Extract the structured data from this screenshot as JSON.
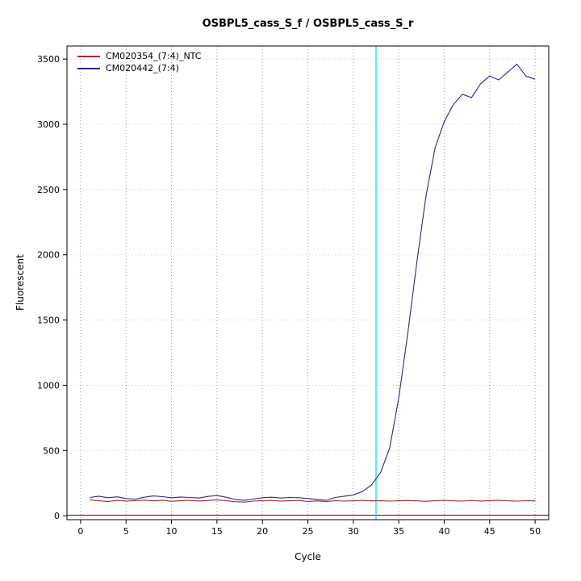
{
  "chart_data": {
    "type": "line",
    "title": "OSBPL5_cass_S_f / OSBPL5_cass_S_r",
    "xlabel": "Cycle",
    "ylabel": "Fluorescent",
    "xlim": [
      0,
      50
    ],
    "ylim": [
      0,
      3500
    ],
    "xticks": [
      0,
      5,
      10,
      15,
      20,
      25,
      30,
      35,
      40,
      45,
      50
    ],
    "yticks": [
      0,
      500,
      1000,
      1500,
      2000,
      2500,
      3000,
      3500
    ],
    "grid": "dotted",
    "legend_position": "top-left",
    "ct_line": {
      "x": 32.5,
      "color": "#00e5ee"
    },
    "baseline_line": {
      "y": 5,
      "color": "#8b0000"
    },
    "x": [
      1,
      2,
      3,
      4,
      5,
      6,
      7,
      8,
      9,
      10,
      11,
      12,
      13,
      14,
      15,
      16,
      17,
      18,
      19,
      20,
      21,
      22,
      23,
      24,
      25,
      26,
      27,
      28,
      29,
      30,
      31,
      32,
      33,
      34,
      35,
      36,
      37,
      38,
      39,
      40,
      41,
      42,
      43,
      44,
      45,
      46,
      47,
      48,
      49,
      50
    ],
    "series": [
      {
        "name": "CM020354_(7:4)_NTC",
        "color": "#a52a2a",
        "values": [
          122,
          115,
          110,
          118,
          113,
          116,
          120,
          114,
          118,
          111,
          115,
          119,
          113,
          117,
          122,
          115,
          108,
          105,
          112,
          116,
          118,
          113,
          115,
          117,
          110,
          114,
          108,
          116,
          112,
          115,
          118,
          114,
          116,
          112,
          115,
          117,
          114,
          111,
          115,
          118,
          115,
          112,
          117,
          113,
          116,
          119,
          115,
          112,
          116,
          114
        ]
      },
      {
        "name": "CM020442_(7:4)",
        "color": "#28288c",
        "values": [
          140,
          150,
          138,
          145,
          132,
          128,
          142,
          152,
          146,
          138,
          144,
          140,
          136,
          148,
          155,
          142,
          125,
          118,
          128,
          138,
          142,
          136,
          140,
          138,
          132,
          125,
          118,
          140,
          150,
          160,
          185,
          235,
          330,
          520,
          900,
          1400,
          1950,
          2450,
          2820,
          3020,
          3150,
          3230,
          3205,
          3310,
          3370,
          3340,
          3400,
          3460,
          3370,
          3345
        ]
      }
    ]
  }
}
